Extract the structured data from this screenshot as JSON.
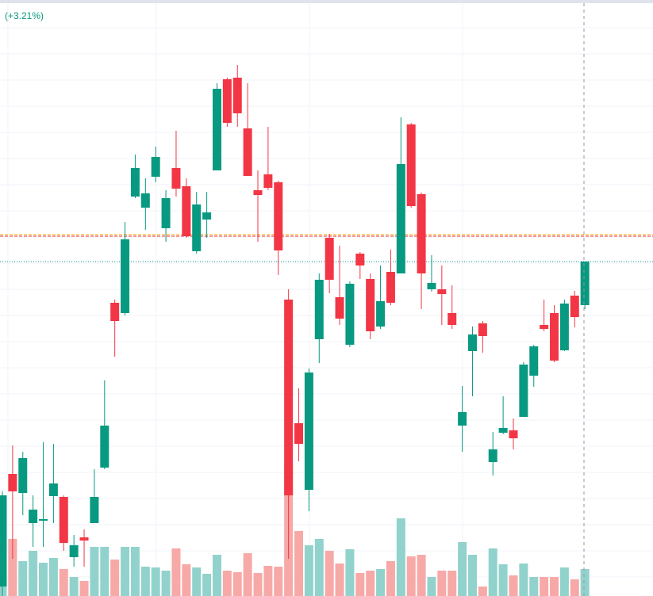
{
  "chart_data": {
    "type": "candlestick",
    "subtitle": "(+3.21%)",
    "open": [
      12,
      154,
      130,
      92,
      95,
      126,
      125,
      49,
      74,
      92,
      162,
      370,
      357,
      504,
      490,
      529,
      464,
      540,
      517,
      435,
      475,
      537,
      652,
      654,
      590,
      512,
      532,
      522,
      374,
      218,
      134,
      324,
      452,
      377,
      317,
      432,
      400,
      340,
      409,
      407,
      595,
      507,
      387,
      387,
      357,
      215,
      309,
      344,
      169,
      206,
      209,
      226,
      278,
      342,
      357,
      310,
      379,
      367
    ],
    "high": [
      132,
      190,
      182,
      127,
      194,
      192,
      127,
      77,
      84,
      160,
      272,
      374,
      472,
      557,
      527,
      567,
      512,
      587,
      527,
      510,
      510,
      647,
      654,
      670,
      647,
      537,
      592,
      524,
      387,
      262,
      287,
      407,
      457,
      442,
      397,
      434,
      407,
      417,
      437,
      604,
      597,
      509,
      430,
      417,
      392,
      265,
      340,
      347,
      207,
      252,
      224,
      295,
      317,
      374,
      367,
      374,
      385,
      422
    ],
    "low": [
      0,
      47,
      102,
      62,
      62,
      92,
      57,
      37,
      37,
      92,
      160,
      302,
      354,
      502,
      462,
      522,
      447,
      504,
      452,
      432,
      452,
      537,
      592,
      592,
      530,
      447,
      512,
      405,
      47,
      170,
      107,
      294,
      382,
      342,
      314,
      400,
      324,
      337,
      367,
      407,
      490,
      362,
      384,
      342,
      337,
      182,
      252,
      307,
      152,
      204,
      185,
      226,
      264,
      334,
      295,
      309,
      339,
      362
    ],
    "close": [
      127,
      132,
      174,
      109,
      97,
      142,
      67,
      64,
      70,
      125,
      215,
      347,
      450,
      540,
      508,
      554,
      502,
      514,
      454,
      494,
      484,
      640,
      597,
      609,
      530,
      506,
      515,
      436,
      127,
      192,
      282,
      399,
      399,
      350,
      394,
      417,
      334,
      372,
      370,
      545,
      492,
      407,
      395,
      381,
      342,
      232,
      330,
      328,
      185,
      212,
      199,
      292,
      315,
      337,
      297,
      369,
      352,
      422
    ],
    "volume": [
      52,
      72,
      44,
      57,
      42,
      48,
      34,
      24,
      19,
      62,
      62,
      46,
      62,
      62,
      37,
      36,
      32,
      60,
      40,
      36,
      28,
      52,
      32,
      30,
      54,
      29,
      38,
      37,
      165,
      82,
      64,
      72,
      57,
      41,
      59,
      29,
      32,
      34,
      44,
      98,
      50,
      52,
      24,
      32,
      32,
      68,
      52,
      12,
      60,
      40,
      26,
      41,
      24,
      24,
      24,
      36,
      21,
      34
    ],
    "ylim": [
      0,
      752
    ],
    "volume_ylim": [
      0,
      752
    ],
    "up_color": "#089981",
    "down_color": "#f23645",
    "volume_up_color": "#92d2cc",
    "volume_down_color": "#f7a9a7",
    "hlines": [
      {
        "value": 456,
        "color": "#f7a600"
      },
      {
        "value": 454,
        "color": "#f23645"
      }
    ],
    "grid": true
  }
}
